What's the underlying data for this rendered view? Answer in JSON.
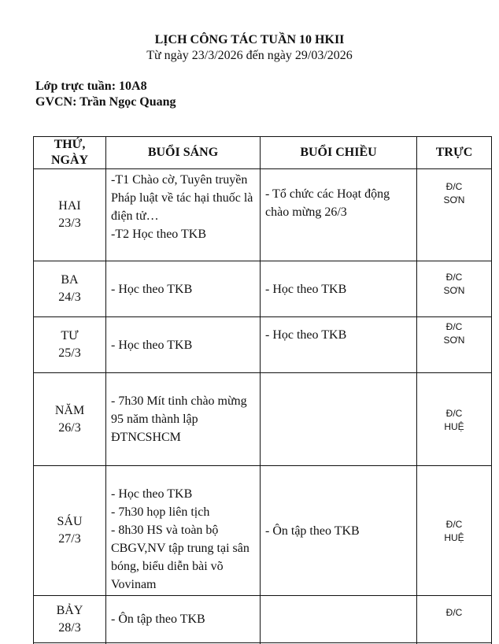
{
  "header": {
    "title": "LỊCH CÔNG TÁC TUẦN 10 HKII",
    "subtitle": "Từ ngày  23/3/2026 đến ngày  29/03/2026"
  },
  "info": {
    "class_on_duty": "Lớp trực tuần:  10A8",
    "homeroom_teacher": "GVCN: Trần Ngọc Quang"
  },
  "table": {
    "columns": [
      "THỨ, NGÀY",
      "BUỔI SÁNG",
      "BUỔI CHIỀU",
      "TRỰC"
    ],
    "column_lines": [
      "THỨ,",
      "NGÀY"
    ],
    "rows": [
      {
        "day": "HAI",
        "date": "23/3",
        "morning": [
          "-T1 Chào cờ, Tuyên truyền Pháp luật về tác hại thuốc là điện tử…",
          "-T2 Học theo TKB"
        ],
        "afternoon": [
          "- Tổ chức các Hoạt động chào mừng 26/3"
        ],
        "duty": [
          "Đ/C",
          "SƠN"
        ]
      },
      {
        "day": "BA",
        "date": "24/3",
        "morning": [
          "- Học theo TKB"
        ],
        "afternoon": [
          "- Học theo TKB"
        ],
        "duty": [
          "Đ/C",
          "SƠN"
        ]
      },
      {
        "day": "TƯ",
        "date": "25/3",
        "morning": [
          "- Học theo TKB"
        ],
        "afternoon": [
          "- Học theo TKB"
        ],
        "duty": [
          "Đ/C",
          "SƠN"
        ]
      },
      {
        "day": "NĂM",
        "date": "26/3",
        "morning": [
          "- 7h30 Mít tinh chào mừng 95 năm thành lập ĐTNCSHCM"
        ],
        "afternoon": [],
        "duty": [
          "Đ/C",
          "HUỆ"
        ]
      },
      {
        "day": "SÁU",
        "date": "27/3",
        "morning": [
          "- Học theo TKB",
          "- 7h30 họp liên tịch",
          "- 8h30 HS và toàn bộ CBGV,NV tập trung tại sân bóng, biểu diễn bài võ Vovinam"
        ],
        "afternoon": [
          "- Ôn tập theo TKB"
        ],
        "duty": [
          "Đ/C",
          "HUỆ"
        ]
      },
      {
        "day": "BẢY",
        "date": "28/3",
        "morning": [
          "- Ôn tập theo TKB"
        ],
        "afternoon": [],
        "duty": [
          "Đ/C"
        ]
      }
    ]
  }
}
